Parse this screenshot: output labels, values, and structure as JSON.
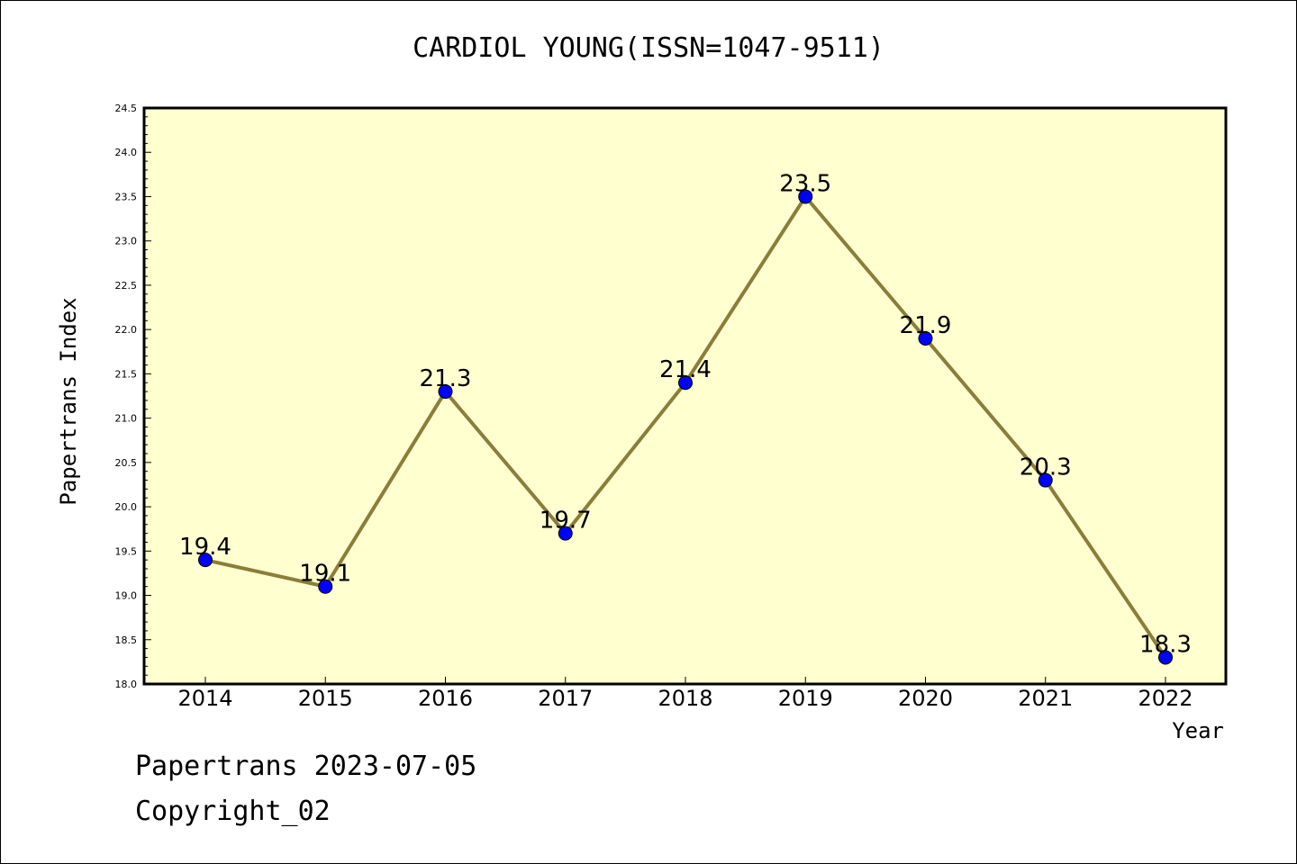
{
  "chart_data": {
    "type": "line",
    "title": "CARDIOL YOUNG(ISSN=1047-9511)",
    "xlabel": "Year",
    "ylabel": "Papertrans Index",
    "categories": [
      "2014",
      "2015",
      "2016",
      "2017",
      "2018",
      "2019",
      "2020",
      "2021",
      "2022"
    ],
    "series": [
      {
        "values": [
          19.4,
          19.1,
          21.3,
          19.7,
          21.4,
          23.5,
          21.9,
          20.3,
          18.3
        ],
        "data_labels": [
          "19.4",
          "19.1",
          "21.3",
          "19.7",
          "21.4",
          "23.5",
          "21.9",
          "20.3",
          "18.3"
        ]
      }
    ],
    "ylim": [
      18.0,
      24.5
    ],
    "yticks": [
      "18.0",
      "18.5",
      "19.0",
      "19.5",
      "20.0",
      "20.5",
      "21.0",
      "21.5",
      "22.0",
      "22.5",
      "23.0",
      "23.5",
      "24.0",
      "24.5"
    ],
    "grid": false,
    "colors": {
      "plot_background": "#ffffd0",
      "line": "#8b7d3a",
      "marker": "#0000ff"
    }
  },
  "footer": {
    "date_text": "Papertrans 2023-07-05",
    "copyright_text": "Copyright_02"
  }
}
